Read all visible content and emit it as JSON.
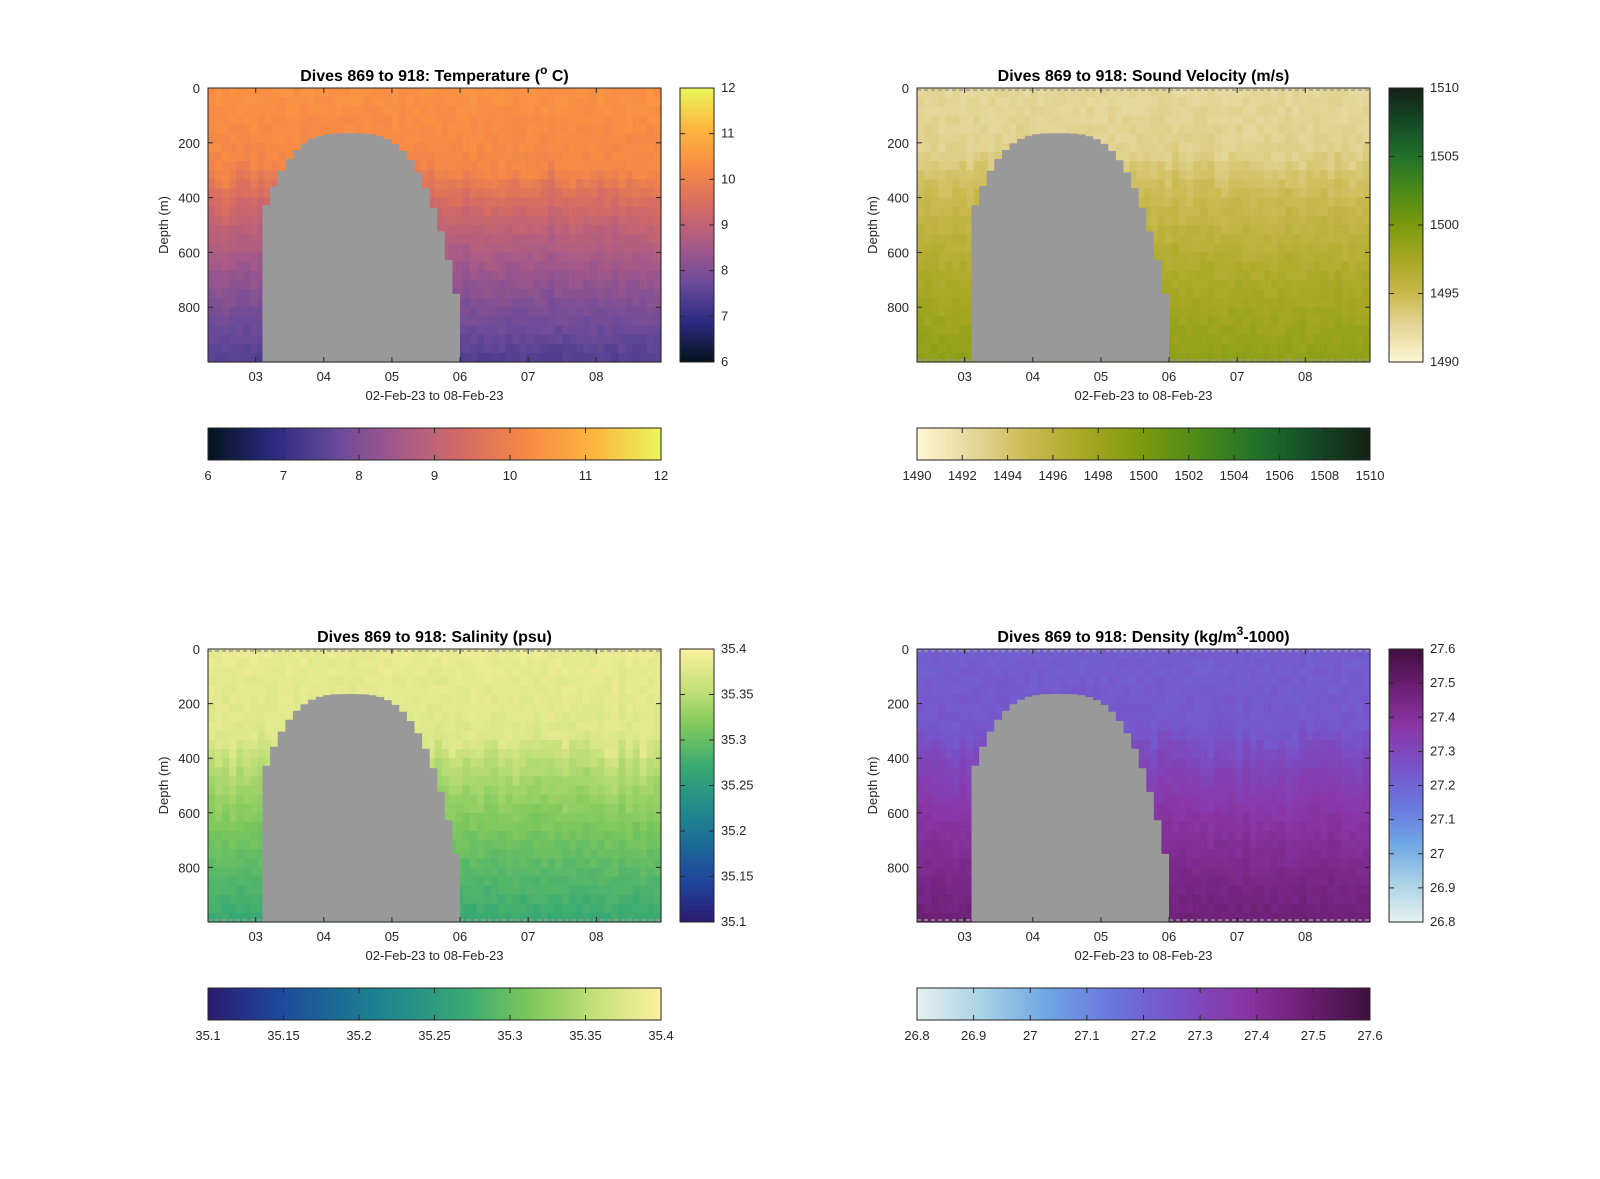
{
  "chart_data": [
    {
      "type": "heatmap",
      "title": "Dives 869 to 918: Temperature (° C)",
      "title_prefix": "Dives 869 to 918: Temperature (",
      "title_sup": "o",
      "title_suffix": " C)",
      "xlabel": "02-Feb-23 to 08-Feb-23",
      "ylabel": "Depth (m)",
      "x_ticks": [
        "03",
        "04",
        "05",
        "06",
        "07",
        "08"
      ],
      "xlim": [
        2.3,
        8.95
      ],
      "y_ticks": [
        0,
        200,
        400,
        600,
        800
      ],
      "ylim": [
        0,
        1000
      ],
      "y_reversed": true,
      "colorbar_ticks": [
        "6",
        "7",
        "8",
        "9",
        "10",
        "11",
        "12"
      ],
      "colorbar_range": [
        6,
        12
      ],
      "horizontal_colorbar_ticks": [
        "6",
        "7",
        "8",
        "9",
        "10",
        "11",
        "12"
      ],
      "colormap": [
        "#04121c",
        "#2a2a80",
        "#6a4a9a",
        "#a85a88",
        "#d76c62",
        "#f88c44",
        "#fcb83e",
        "#e9f75a"
      ],
      "surface_value": 10.4,
      "bottom_value": 7.4,
      "mixed_layer_depth": 300,
      "missing_region": {
        "color": "#999999",
        "x_start": 3.1,
        "x_end": 6.0,
        "top_depth_min": 165,
        "bottom_depth": 1000
      },
      "dashed_lines": false
    },
    {
      "type": "heatmap",
      "title": "Dives 869 to 918: Sound Velocity (m/s)",
      "title_prefix": "Dives 869 to 918: Sound Velocity (m/s)",
      "title_sup": "",
      "title_suffix": "",
      "xlabel": "02-Feb-23 to 08-Feb-23",
      "ylabel": "Depth (m)",
      "x_ticks": [
        "03",
        "04",
        "05",
        "06",
        "07",
        "08"
      ],
      "xlim": [
        2.3,
        8.95
      ],
      "y_ticks": [
        0,
        200,
        400,
        600,
        800
      ],
      "ylim": [
        0,
        1000
      ],
      "y_reversed": true,
      "colorbar_ticks": [
        "1490",
        "1495",
        "1500",
        "1505",
        "1510"
      ],
      "colorbar_range": [
        1490,
        1510
      ],
      "horizontal_colorbar_ticks": [
        "1490",
        "1492",
        "1494",
        "1496",
        "1498",
        "1500",
        "1502",
        "1504",
        "1506",
        "1508",
        "1510"
      ],
      "colormap": [
        "#fdf7d4",
        "#e5d79a",
        "#c9b94f",
        "#a6a722",
        "#7a9a10",
        "#4b8a18",
        "#21712a",
        "#144a26",
        "#152114"
      ],
      "surface_value": 1492.5,
      "bottom_value": 1498.8,
      "mixed_layer_depth": 250,
      "missing_region": {
        "color": "#999999",
        "x_start": 3.1,
        "x_end": 6.0,
        "top_depth_min": 165,
        "bottom_depth": 1000
      },
      "dashed_lines": true
    },
    {
      "type": "heatmap",
      "title": "Dives 869 to 918: Salinity (psu)",
      "title_prefix": "Dives 869 to 918: Salinity (psu)",
      "title_sup": "",
      "title_suffix": "",
      "xlabel": "02-Feb-23 to 08-Feb-23",
      "ylabel": "Depth (m)",
      "x_ticks": [
        "03",
        "04",
        "05",
        "06",
        "07",
        "08"
      ],
      "xlim": [
        2.3,
        8.95
      ],
      "y_ticks": [
        0,
        200,
        400,
        600,
        800
      ],
      "ylim": [
        0,
        1000
      ],
      "y_reversed": true,
      "colorbar_ticks": [
        "35.1",
        "35.15",
        "35.2",
        "35.25",
        "35.3",
        "35.35",
        "35.4"
      ],
      "colorbar_range": [
        35.1,
        35.4
      ],
      "horizontal_colorbar_ticks": [
        "35.1",
        "35.15",
        "35.2",
        "35.25",
        "35.3",
        "35.35",
        "35.4"
      ],
      "colormap": [
        "#2a1a6e",
        "#20449a",
        "#1b6b96",
        "#228e8a",
        "#3aaa72",
        "#7ec85c",
        "#c6e17a",
        "#fbf0a0"
      ],
      "surface_value": 35.385,
      "bottom_value": 35.27,
      "mixed_layer_depth": 350,
      "missing_region": {
        "color": "#999999",
        "x_start": 3.1,
        "x_end": 6.0,
        "top_depth_min": 165,
        "bottom_depth": 1000
      },
      "dashed_lines": true
    },
    {
      "type": "heatmap",
      "title": "Dives 869 to 918: Density (kg/m³-1000)",
      "title_prefix": "Dives 869 to 918: Density (kg/m",
      "title_sup": "3",
      "title_suffix": "-1000)",
      "xlabel": "02-Feb-23 to 08-Feb-23",
      "ylabel": "Depth (m)",
      "x_ticks": [
        "03",
        "04",
        "05",
        "06",
        "07",
        "08"
      ],
      "xlim": [
        2.3,
        8.95
      ],
      "y_ticks": [
        0,
        200,
        400,
        600,
        800
      ],
      "ylim": [
        0,
        1000
      ],
      "y_reversed": true,
      "colorbar_ticks": [
        "26.8",
        "26.9",
        "27",
        "27.1",
        "27.2",
        "27.3",
        "27.4",
        "27.5",
        "27.6"
      ],
      "colorbar_range": [
        26.8,
        27.6
      ],
      "horizontal_colorbar_ticks": [
        "26.8",
        "26.9",
        "27",
        "27.1",
        "27.2",
        "27.3",
        "27.4",
        "27.5",
        "27.6"
      ],
      "colormap": [
        "#e6f1f1",
        "#a9d2e6",
        "#6fa7e4",
        "#6a76de",
        "#7852c8",
        "#8a36a6",
        "#6d1f74",
        "#3f0f3e"
      ],
      "surface_value": 27.22,
      "bottom_value": 27.48,
      "mixed_layer_depth": 320,
      "missing_region": {
        "color": "#999999",
        "x_start": 3.1,
        "x_end": 6.0,
        "top_depth_min": 165,
        "bottom_depth": 1000
      },
      "dashed_lines": true
    }
  ]
}
